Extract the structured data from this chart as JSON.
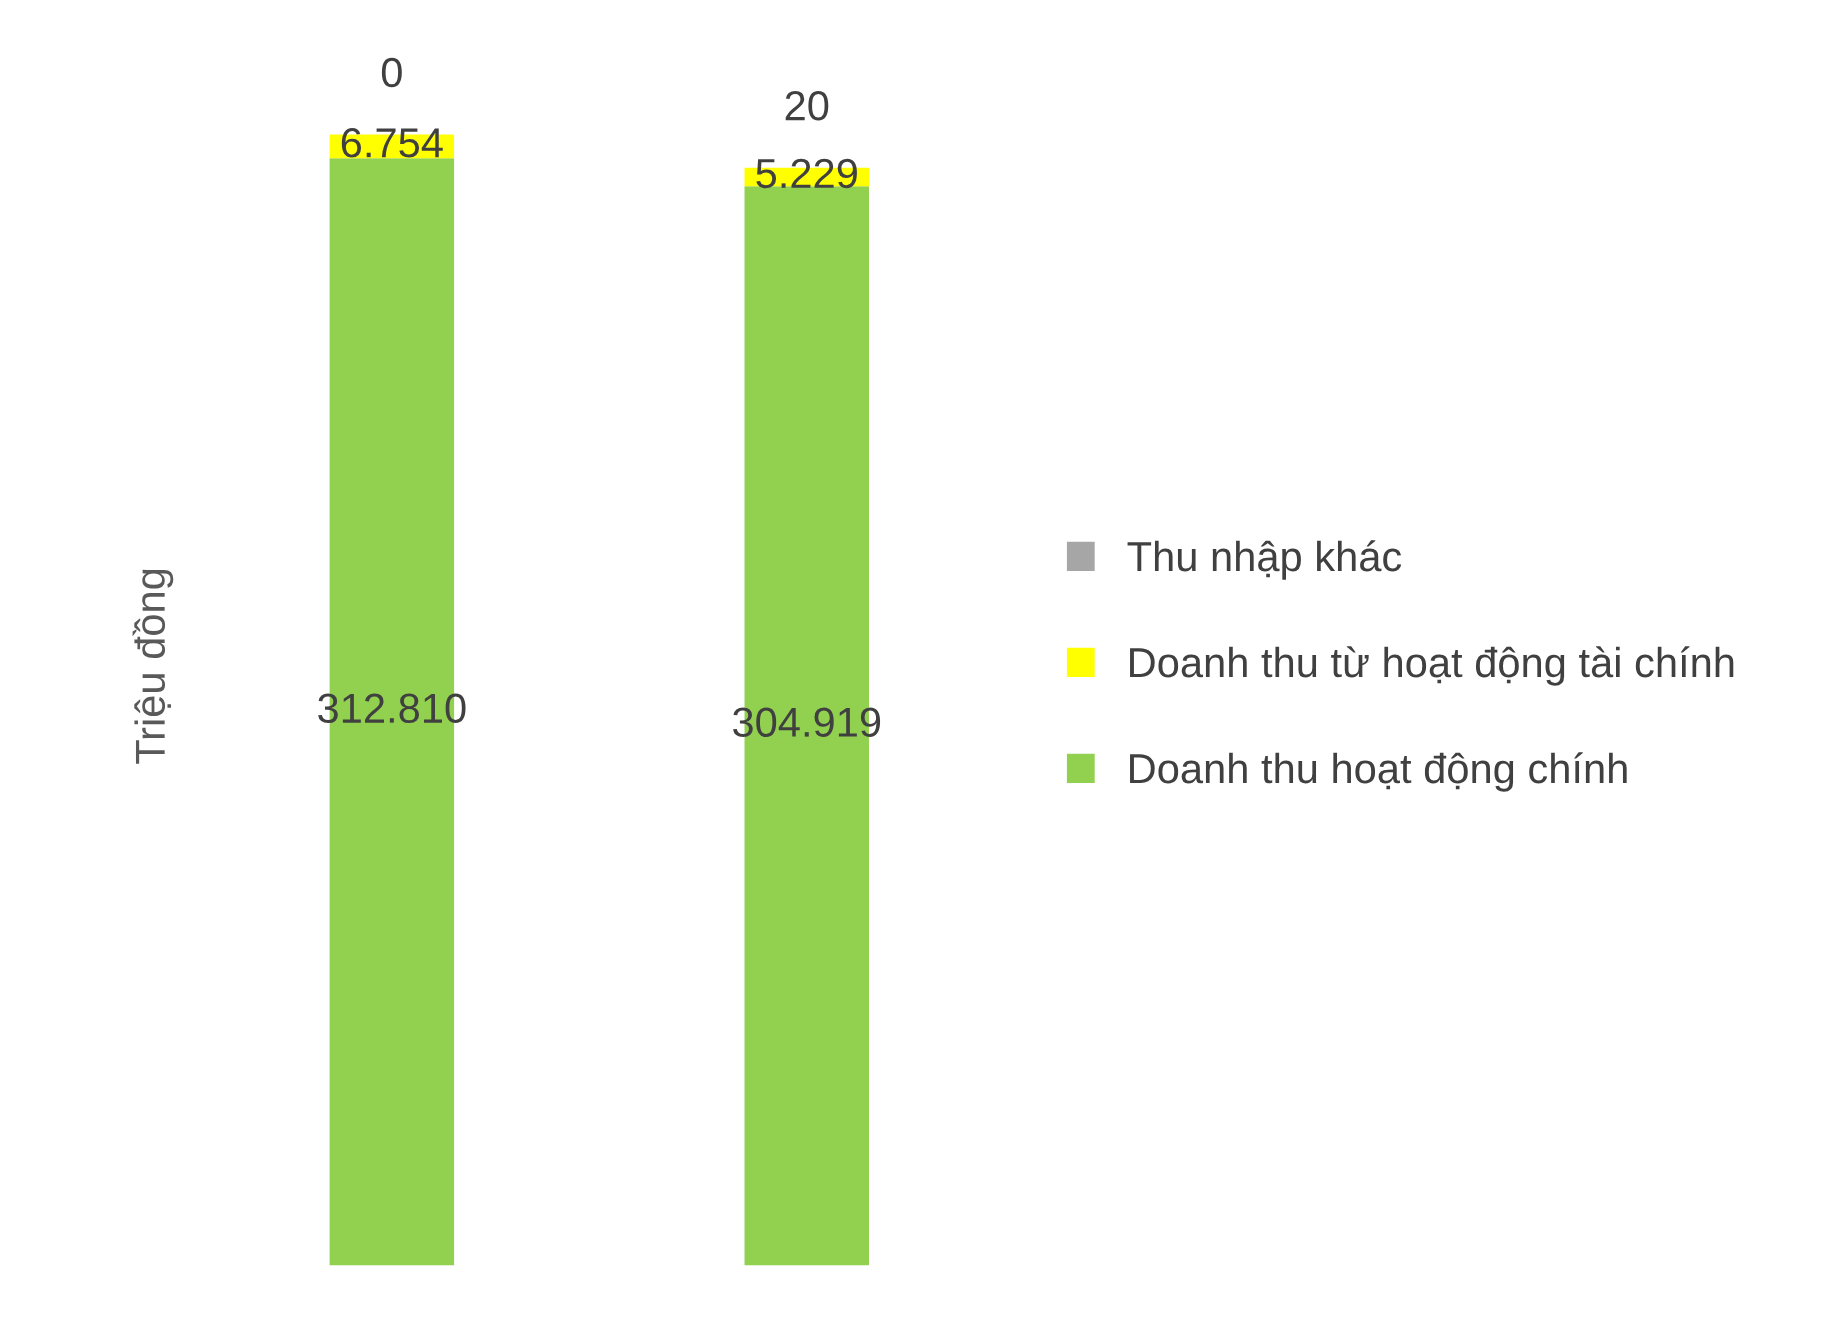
{
  "chart_data": {
    "type": "bar",
    "stacked": true,
    "ylabel": "Triệu đồng",
    "categories": [
      null,
      null
    ],
    "legend": "right",
    "grid": false,
    "series": [
      {
        "name": "Doanh thu hoạt động chính",
        "color": "#92d050",
        "values": [
          312810,
          304919
        ],
        "value_labels": [
          "312.810",
          "304.919"
        ]
      },
      {
        "name": "Doanh thu từ hoạt động tài chính",
        "color": "#ffff00",
        "values": [
          6754,
          5229
        ],
        "value_labels": [
          "6.754",
          "5.229"
        ]
      },
      {
        "name": "Thu nhập khác",
        "color": "#a6a6a6",
        "values": [
          0,
          20
        ],
        "value_labels": [
          "0",
          "20"
        ]
      }
    ]
  }
}
